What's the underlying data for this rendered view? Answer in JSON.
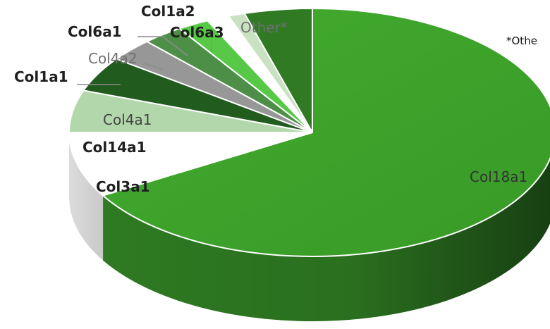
{
  "chart_data": {
    "type": "pie",
    "style": "3d-exploded-style pie",
    "footnote": "*Othe",
    "slices": [
      {
        "label": "Col18a1",
        "value": 66.5,
        "color": "#3fa42b",
        "label_bold": false
      },
      {
        "label": "Col3a1",
        "value": 8.5,
        "color": "#ffffff",
        "label_bold": true
      },
      {
        "label": "Col14a1",
        "value": 5.5,
        "color": "#b2d7aa",
        "label_bold": true
      },
      {
        "label": "Col4a1",
        "value": 4.6,
        "color": "#215b1d",
        "label_bold": false
      },
      {
        "label": "Col1a1",
        "value": 3.0,
        "color": "#979797",
        "label_bold": true
      },
      {
        "label": "Col4a2",
        "value": 2.7,
        "color": "#4e8f48",
        "label_bold": false
      },
      {
        "label": "Col6a1",
        "value": 2.1,
        "color": "#58c946",
        "label_bold": true
      },
      {
        "label": "Col6a3",
        "value": 0.8,
        "color": "#ffffff",
        "label_bold": true
      },
      {
        "label": "Col1a2",
        "value": 0.7,
        "color": "#ffffff",
        "label_bold": true
      },
      {
        "label": "Other*",
        "value": 1.1,
        "color": "#c9e2c1",
        "label_bold": false
      },
      {
        "label": "",
        "value": 4.5,
        "color": "#307a24",
        "label_bold": false
      }
    ],
    "colors": {
      "side_dark": "#1e4d16",
      "side_mid": "#2f7f22",
      "side_light": "#d6d6d6",
      "leader_line": "#8c8c8c"
    }
  }
}
